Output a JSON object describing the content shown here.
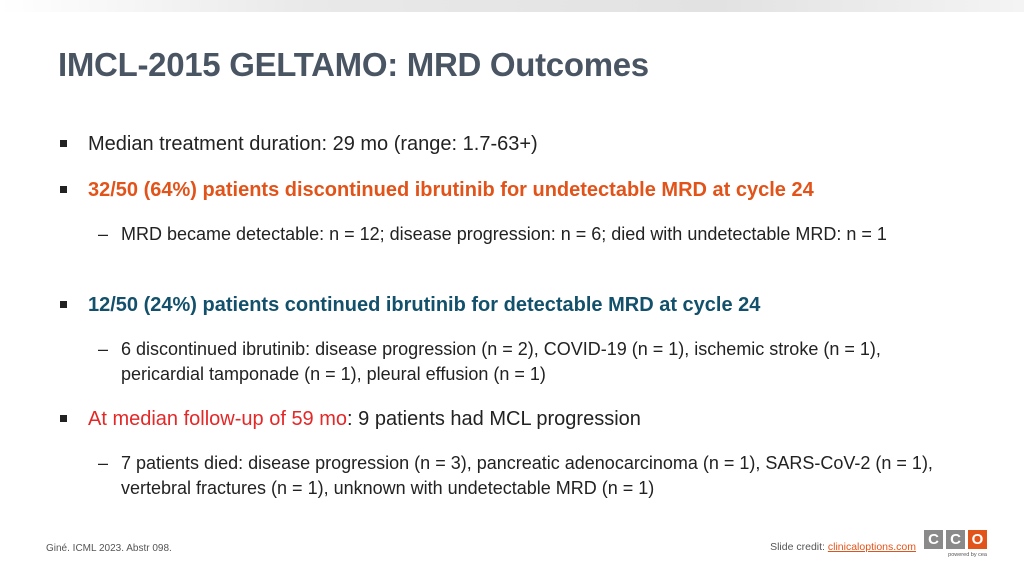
{
  "title": "IMCL-2015 GELTAMO: MRD Outcomes",
  "bullets": {
    "b1": "Median treatment duration: 29 mo (range: 1.7-63+)",
    "b2": "32/50 (64%) patients discontinued ibrutinib for undetectable MRD at cycle 24",
    "b2_sub": "MRD became detectable: n = 12; disease progression: n = 6; died with undetectable MRD: n = 1",
    "b3": "12/50 (24%) patients continued ibrutinib for detectable MRD at cycle 24",
    "b3_sub": "6 discontinued ibrutinib: disease progression (n = 2), COVID-19 (n = 1), ischemic stroke (n = 1), pericardial tamponade (n = 1), pleural effusion (n = 1)",
    "b4_highlight": "At median follow-up of 59 mo",
    "b4_rest": ": 9 patients had MCL progression",
    "b4_sub": "7 patients died: disease progression (n = 3), pancreatic adenocarcinoma (n = 1), SARS-CoV-2 (n = 1), vertebral fractures (n = 1), unknown with undetectable MRD (n = 1)"
  },
  "footer": {
    "citation": "Giné. ICML 2023. Abstr 098.",
    "credit_label": "Slide credit: ",
    "credit_link": "clinicaloptions.com",
    "logo_letters": [
      "C",
      "C",
      "O"
    ],
    "logo_tag": "powered by cea"
  },
  "colors": {
    "title": "#4a5563",
    "orange_highlight": "#e2531a",
    "teal_highlight": "#12506b",
    "red_highlight": "#e42727",
    "logo_gray": "#8a8a8a",
    "logo_orange": "#e2531a"
  }
}
